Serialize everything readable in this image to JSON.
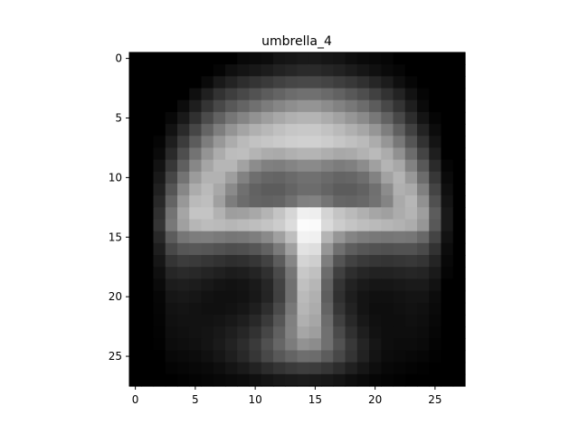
{
  "chart_data": {
    "type": "heatmap",
    "title": "umbrella_4",
    "xlabel": "",
    "ylabel": "",
    "colormap": "gray",
    "xlim": [
      -0.5,
      27.5
    ],
    "ylim": [
      27.5,
      -0.5
    ],
    "xticks": [
      0,
      5,
      10,
      15,
      20,
      25
    ],
    "yticks": [
      0,
      5,
      10,
      15,
      20,
      25
    ],
    "grid": false,
    "value_range": [
      0,
      255
    ],
    "rows": 28,
    "cols": 28,
    "values": [
      [
        0,
        0,
        0,
        0,
        0,
        0,
        0,
        0,
        0,
        8,
        10,
        12,
        20,
        22,
        25,
        25,
        22,
        20,
        14,
        10,
        8,
        6,
        0,
        0,
        0,
        0,
        0,
        0
      ],
      [
        0,
        0,
        0,
        0,
        0,
        0,
        0,
        5,
        15,
        20,
        24,
        28,
        34,
        38,
        42,
        42,
        38,
        34,
        28,
        22,
        16,
        10,
        6,
        0,
        0,
        0,
        0,
        0
      ],
      [
        0,
        0,
        0,
        0,
        0,
        0,
        10,
        25,
        35,
        45,
        52,
        58,
        65,
        70,
        72,
        72,
        68,
        62,
        56,
        48,
        38,
        28,
        15,
        6,
        0,
        0,
        0,
        0
      ],
      [
        0,
        0,
        0,
        0,
        0,
        15,
        32,
        50,
        62,
        72,
        82,
        92,
        100,
        108,
        112,
        112,
        106,
        98,
        88,
        78,
        65,
        50,
        35,
        18,
        5,
        0,
        0,
        0
      ],
      [
        0,
        0,
        0,
        0,
        12,
        30,
        52,
        72,
        88,
        100,
        112,
        124,
        134,
        142,
        148,
        148,
        140,
        130,
        120,
        108,
        92,
        72,
        52,
        30,
        10,
        0,
        0,
        0
      ],
      [
        0,
        0,
        0,
        8,
        25,
        48,
        75,
        98,
        118,
        132,
        146,
        158,
        168,
        176,
        180,
        180,
        172,
        162,
        150,
        138,
        120,
        98,
        72,
        45,
        20,
        5,
        0,
        0
      ],
      [
        0,
        0,
        0,
        18,
        42,
        70,
        100,
        126,
        148,
        164,
        176,
        184,
        192,
        198,
        200,
        200,
        194,
        186,
        176,
        166,
        150,
        126,
        96,
        65,
        35,
        12,
        0,
        0
      ],
      [
        0,
        0,
        5,
        30,
        60,
        92,
        125,
        152,
        172,
        186,
        194,
        198,
        202,
        206,
        208,
        208,
        204,
        198,
        192,
        186,
        172,
        150,
        120,
        85,
        50,
        20,
        0,
        0
      ],
      [
        0,
        0,
        10,
        42,
        78,
        115,
        148,
        172,
        188,
        190,
        180,
        172,
        170,
        176,
        180,
        180,
        174,
        168,
        170,
        178,
        186,
        172,
        145,
        108,
        68,
        30,
        0,
        0
      ],
      [
        0,
        0,
        18,
        55,
        95,
        135,
        165,
        182,
        182,
        162,
        140,
        128,
        126,
        132,
        138,
        138,
        130,
        124,
        128,
        140,
        160,
        180,
        168,
        130,
        88,
        42,
        5,
        0
      ],
      [
        0,
        0,
        25,
        70,
        115,
        155,
        178,
        178,
        158,
        130,
        110,
        102,
        100,
        106,
        112,
        112,
        106,
        100,
        102,
        110,
        130,
        162,
        180,
        152,
        108,
        55,
        10,
        0
      ],
      [
        0,
        0,
        32,
        85,
        135,
        172,
        186,
        168,
        138,
        112,
        98,
        92,
        92,
        100,
        108,
        108,
        100,
        92,
        92,
        98,
        112,
        140,
        176,
        170,
        128,
        68,
        15,
        0
      ],
      [
        0,
        0,
        40,
        100,
        152,
        186,
        190,
        160,
        125,
        108,
        100,
        98,
        100,
        112,
        128,
        130,
        116,
        102,
        100,
        104,
        114,
        132,
        170,
        182,
        145,
        80,
        20,
        0
      ],
      [
        0,
        0,
        48,
        115,
        165,
        196,
        196,
        178,
        158,
        160,
        168,
        180,
        196,
        214,
        240,
        238,
        212,
        196,
        186,
        176,
        166,
        160,
        172,
        180,
        158,
        92,
        25,
        0
      ],
      [
        0,
        0,
        52,
        120,
        160,
        182,
        188,
        186,
        182,
        186,
        190,
        196,
        204,
        220,
        252,
        250,
        218,
        204,
        196,
        190,
        186,
        182,
        178,
        172,
        150,
        88,
        25,
        0
      ],
      [
        0,
        0,
        40,
        92,
        118,
        125,
        126,
        122,
        118,
        120,
        126,
        138,
        160,
        190,
        242,
        240,
        180,
        150,
        132,
        124,
        120,
        118,
        120,
        118,
        104,
        68,
        18,
        0
      ],
      [
        0,
        0,
        30,
        72,
        86,
        88,
        86,
        82,
        78,
        80,
        86,
        98,
        122,
        160,
        226,
        222,
        150,
        112,
        94,
        86,
        82,
        80,
        82,
        82,
        74,
        50,
        12,
        0
      ],
      [
        0,
        0,
        22,
        52,
        60,
        58,
        54,
        50,
        46,
        48,
        54,
        66,
        92,
        134,
        212,
        206,
        126,
        84,
        66,
        58,
        54,
        52,
        54,
        56,
        52,
        36,
        8,
        0
      ],
      [
        0,
        0,
        15,
        38,
        42,
        40,
        36,
        32,
        28,
        30,
        36,
        48,
        74,
        118,
        200,
        192,
        108,
        64,
        46,
        38,
        34,
        34,
        36,
        38,
        36,
        26,
        5,
        0
      ],
      [
        0,
        0,
        10,
        28,
        30,
        28,
        24,
        20,
        18,
        20,
        26,
        38,
        66,
        112,
        192,
        182,
        98,
        52,
        34,
        26,
        22,
        22,
        24,
        26,
        26,
        18,
        0,
        0
      ],
      [
        0,
        0,
        6,
        22,
        24,
        22,
        18,
        16,
        16,
        18,
        24,
        36,
        64,
        112,
        186,
        176,
        94,
        48,
        30,
        20,
        16,
        16,
        18,
        20,
        20,
        12,
        0,
        0
      ],
      [
        0,
        0,
        5,
        18,
        20,
        18,
        16,
        16,
        18,
        22,
        30,
        46,
        74,
        120,
        182,
        172,
        100,
        54,
        34,
        20,
        14,
        14,
        16,
        18,
        16,
        10,
        0,
        0
      ],
      [
        0,
        0,
        4,
        16,
        18,
        18,
        18,
        20,
        24,
        30,
        40,
        58,
        86,
        128,
        176,
        166,
        108,
        64,
        40,
        24,
        16,
        14,
        14,
        16,
        14,
        8,
        0,
        0
      ],
      [
        0,
        0,
        3,
        14,
        16,
        18,
        20,
        24,
        30,
        38,
        50,
        70,
        96,
        130,
        166,
        158,
        112,
        74,
        48,
        30,
        18,
        14,
        14,
        14,
        12,
        6,
        0,
        0
      ],
      [
        0,
        0,
        2,
        12,
        14,
        16,
        20,
        26,
        34,
        44,
        58,
        80,
        102,
        124,
        146,
        140,
        112,
        82,
        56,
        36,
        22,
        14,
        12,
        12,
        10,
        4,
        0,
        0
      ],
      [
        0,
        0,
        0,
        8,
        10,
        12,
        16,
        22,
        30,
        40,
        54,
        72,
        88,
        100,
        110,
        108,
        92,
        72,
        52,
        34,
        20,
        12,
        10,
        8,
        6,
        2,
        0,
        0
      ],
      [
        0,
        0,
        0,
        4,
        6,
        8,
        10,
        14,
        20,
        26,
        34,
        44,
        52,
        58,
        62,
        60,
        54,
        44,
        32,
        22,
        14,
        8,
        6,
        4,
        2,
        0,
        0,
        0
      ],
      [
        0,
        0,
        0,
        0,
        2,
        4,
        6,
        8,
        10,
        12,
        16,
        20,
        24,
        26,
        28,
        26,
        24,
        20,
        14,
        10,
        6,
        4,
        2,
        0,
        0,
        0,
        0,
        0
      ]
    ]
  }
}
